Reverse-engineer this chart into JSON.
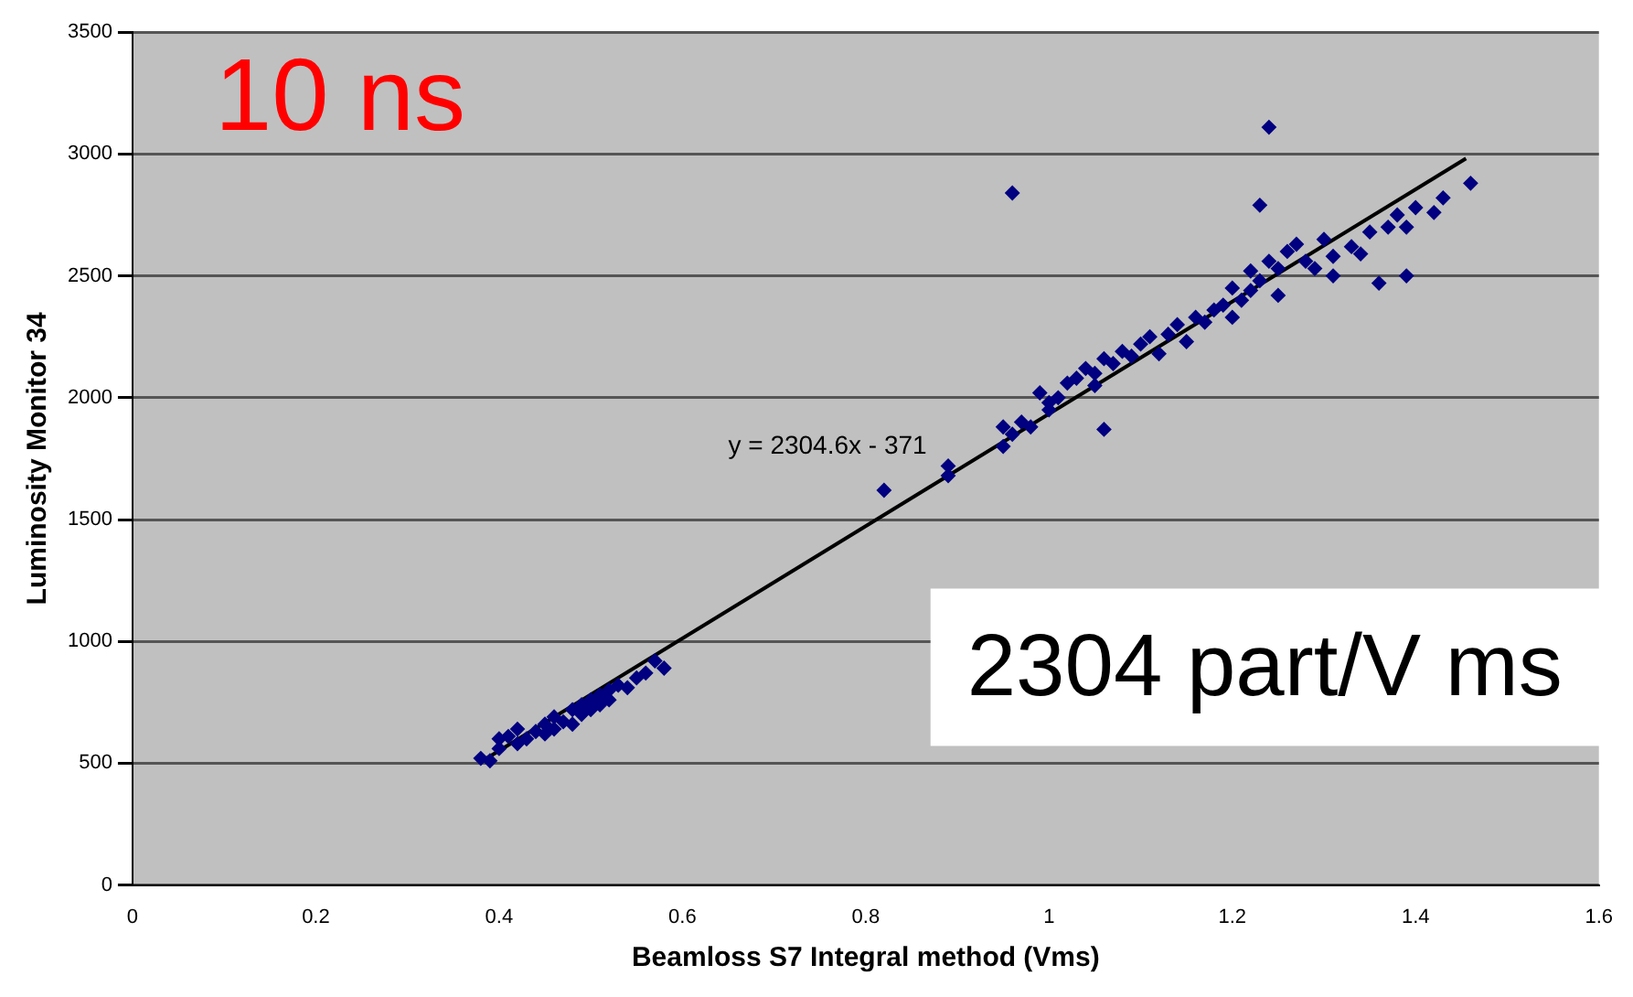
{
  "chart_data": {
    "type": "scatter",
    "xlabel": "Beamloss S7 Integral method (Vms)",
    "ylabel": "Luminosity Monitor 34",
    "xlim": [
      0,
      1.6
    ],
    "xticks": [
      0,
      0.2,
      0.4,
      0.6,
      0.8,
      1,
      1.2,
      1.4,
      1.6
    ],
    "ylim": [
      0,
      3500
    ],
    "yticks": [
      0,
      500,
      1000,
      1500,
      2000,
      2500,
      3000,
      3500
    ],
    "grid": "y",
    "legend": false,
    "annotations": [
      "10 ns",
      "2304 part/V ms",
      "y = 2304.6x - 371"
    ],
    "series": [
      {
        "type": "scatter",
        "marker": "diamond",
        "color": "#000080",
        "x": [
          0.38,
          0.39,
          0.4,
          0.4,
          0.41,
          0.42,
          0.42,
          0.43,
          0.44,
          0.45,
          0.45,
          0.46,
          0.46,
          0.47,
          0.48,
          0.48,
          0.49,
          0.49,
          0.5,
          0.5,
          0.51,
          0.51,
          0.52,
          0.52,
          0.53,
          0.54,
          0.55,
          0.56,
          0.57,
          0.58,
          0.82,
          0.89,
          0.89,
          0.95,
          0.95,
          0.96,
          0.96,
          0.97,
          0.98,
          0.99,
          1.0,
          1.0,
          1.01,
          1.02,
          1.03,
          1.04,
          1.05,
          1.05,
          1.06,
          1.06,
          1.07,
          1.08,
          1.09,
          1.1,
          1.11,
          1.12,
          1.13,
          1.14,
          1.15,
          1.16,
          1.17,
          1.18,
          1.19,
          1.2,
          1.2,
          1.21,
          1.22,
          1.22,
          1.23,
          1.23,
          1.24,
          1.24,
          1.25,
          1.25,
          1.26,
          1.27,
          1.28,
          1.29,
          1.3,
          1.31,
          1.31,
          1.33,
          1.34,
          1.35,
          1.36,
          1.37,
          1.38,
          1.39,
          1.39,
          1.4,
          1.42,
          1.43,
          1.46
        ],
        "values": [
          520,
          510,
          560,
          600,
          610,
          580,
          640,
          600,
          630,
          660,
          620,
          640,
          690,
          670,
          660,
          720,
          700,
          740,
          720,
          760,
          780,
          740,
          800,
          760,
          820,
          810,
          850,
          870,
          920,
          890,
          1620,
          1720,
          1680,
          1800,
          1880,
          1850,
          2840,
          1900,
          1880,
          2020,
          1950,
          1980,
          2000,
          2060,
          2080,
          2120,
          2050,
          2100,
          2160,
          1870,
          2140,
          2190,
          2170,
          2220,
          2250,
          2180,
          2260,
          2300,
          2230,
          2330,
          2310,
          2360,
          2380,
          2330,
          2450,
          2400,
          2440,
          2520,
          2480,
          2790,
          3110,
          2560,
          2530,
          2420,
          2600,
          2630,
          2560,
          2530,
          2650,
          2580,
          2500,
          2620,
          2590,
          2680,
          2470,
          2700,
          2750,
          2700,
          2500,
          2780,
          2760,
          2820,
          2880
        ]
      },
      {
        "type": "line",
        "marker": "none",
        "color": "#000000",
        "x": [
          0.38,
          1.455
        ],
        "values": [
          505,
          2982
        ]
      }
    ]
  }
}
